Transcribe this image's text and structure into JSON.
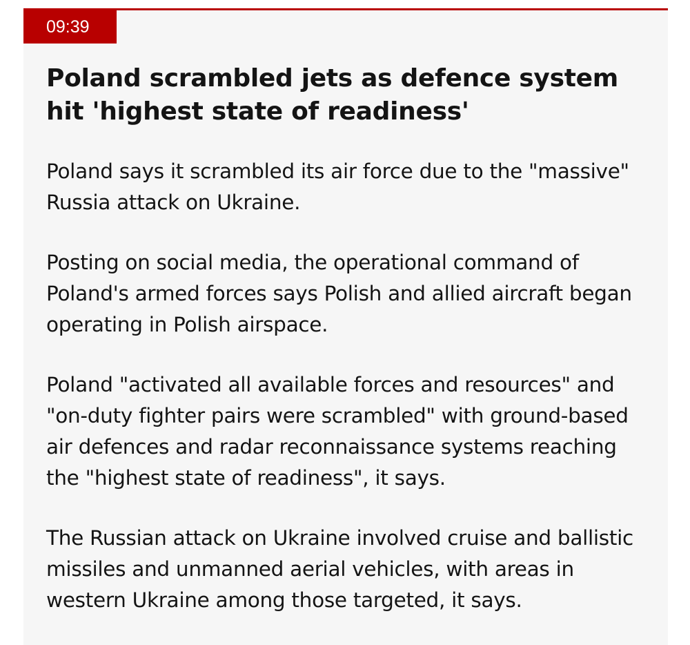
{
  "post": {
    "timestamp": "09:39",
    "headline": "Poland scrambled jets as defence system hit 'highest state of readiness'",
    "paragraphs": [
      "Poland says it scrambled its air force due to the \"massive\" Russia attack on Ukraine.",
      "Posting on social media, the operational command of Poland's armed forces says Polish and allied aircraft began operating in Polish airspace.",
      "Poland \"activated all available forces and resources\" and \"on-duty fighter pairs were scrambled\" with ground-based air defences and radar reconnaissance systems reaching the \"highest state of readiness\", it says.",
      "The Russian attack on Ukraine involved cruise and ballistic missiles and unmanned aerial vehicles, with areas in western Ukraine among those targeted, it says."
    ]
  },
  "colors": {
    "accent": "#b80000",
    "card_background": "#f6f6f6",
    "text": "#141414"
  }
}
